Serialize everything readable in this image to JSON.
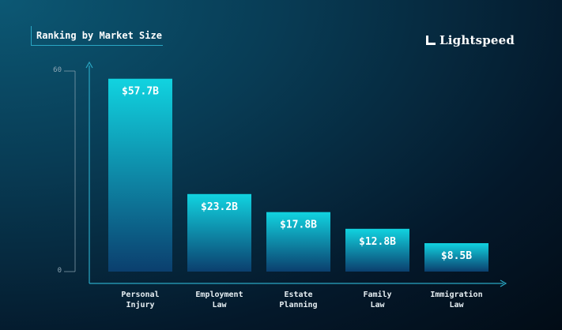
{
  "header": {
    "title": "Ranking by Market Size",
    "brand": "Lightspeed",
    "brand_icon": "lightspeed-logo-icon"
  },
  "colors": {
    "bar_top": "#11d3e0",
    "bar_bottom": "#0b3f6e",
    "axis": "#2aa7c4",
    "scale_line": "#8fa7b5"
  },
  "chart_data": {
    "type": "bar",
    "title": "Ranking by Market Size",
    "categories": [
      [
        "Personal",
        "Injury"
      ],
      [
        "Employment",
        "Law"
      ],
      [
        "Estate",
        "Planning"
      ],
      [
        "Family",
        "Law"
      ],
      [
        "Immigration",
        "Law"
      ]
    ],
    "values": [
      57.7,
      23.2,
      17.8,
      12.8,
      8.5
    ],
    "value_labels": [
      "$57.7B",
      "$23.2B",
      "$17.8B",
      "$12.8B",
      "$8.5B"
    ],
    "y_ticks": [
      "60",
      "0"
    ],
    "ylim": [
      0,
      60
    ],
    "xlabel": "",
    "ylabel": "",
    "grid": false,
    "legend": "none"
  }
}
